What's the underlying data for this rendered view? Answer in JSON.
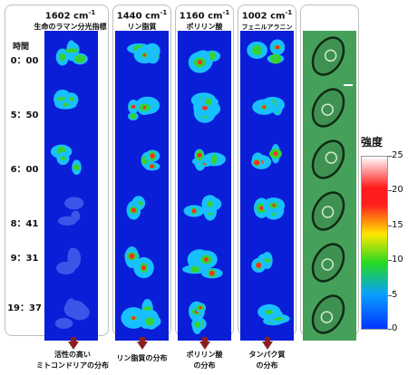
{
  "columns": [
    {
      "wavenumber": "1602 cm",
      "sup": "-1",
      "name": "生命のラマン分光指標"
    },
    {
      "wavenumber": "1440 cm",
      "sup": "-1",
      "name": "リン脂質"
    },
    {
      "wavenumber": "1160 cm",
      "sup": "-1",
      "name": "ポリリン酸"
    },
    {
      "wavenumber": "1002 cm",
      "sup": "-1",
      "name": "フェニルアラニン"
    }
  ],
  "time_header": "時間",
  "times": [
    "0：00",
    "5：50",
    "6：00",
    "8：41",
    "9：31",
    "19：37"
  ],
  "colorbar": {
    "title": "強度",
    "ticks": [
      "25",
      "20",
      "15",
      "10",
      "5",
      "0"
    ]
  },
  "bottom_labels": [
    {
      "line1": "活性の高い",
      "line2": "ミトコンドリアの分布"
    },
    {
      "line1": "リン脂質の分布",
      "line2": ""
    },
    {
      "line1": "ポリリン酸",
      "line2": "の分布"
    },
    {
      "line1": "タンパク質",
      "line2": "の分布"
    }
  ],
  "colors": {
    "map_background": "#0a1ed8",
    "brightfield": "#45a15a",
    "arrow": "#8b1f1f"
  }
}
